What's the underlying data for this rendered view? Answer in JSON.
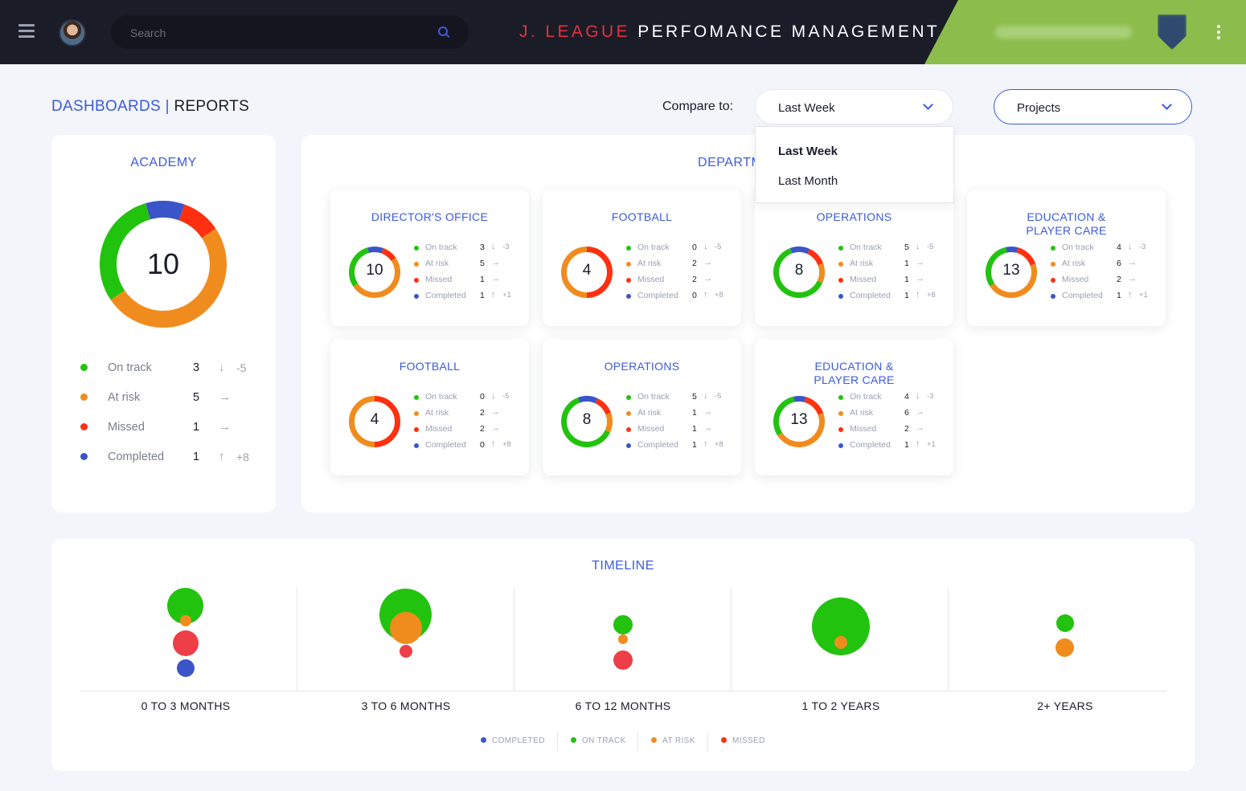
{
  "header": {
    "search_placeholder": "Search",
    "title_accent": "J. LEAGUE",
    "title_rest": "PERFOMANCE MANAGEMENT"
  },
  "breadcrumb": {
    "part1": "DASHBOARDS |",
    "part2": "REPORTS"
  },
  "compare": {
    "label": "Compare to:",
    "selected": "Last Week",
    "options": [
      "Last Week",
      "Last Month"
    ]
  },
  "filter": {
    "selected": "Projects"
  },
  "colors": {
    "on_track": "#22c30e",
    "at_risk": "#f08c1e",
    "missed": "#ff3010",
    "completed": "#3b55c9",
    "accent": "#3b5bdb"
  },
  "academy": {
    "title": "ACADEMY",
    "total": "10",
    "rows": [
      {
        "label": "On track",
        "value": "3",
        "arrow": "↓",
        "delta": "-5"
      },
      {
        "label": "At risk",
        "value": "5",
        "arrow": "→",
        "delta": ""
      },
      {
        "label": "Missed",
        "value": "1",
        "arrow": "→",
        "delta": ""
      },
      {
        "label": "Completed",
        "value": "1",
        "arrow": "↑",
        "delta": "+8"
      }
    ]
  },
  "departments": {
    "title": "DEPARTMENTS",
    "cards": [
      {
        "title": "DIRECTOR'S OFFICE",
        "total": "10",
        "rows": [
          {
            "label": "On track",
            "value": "3",
            "arrow": "↓",
            "delta": "-3"
          },
          {
            "label": "At risk",
            "value": "5",
            "arrow": "→",
            "delta": ""
          },
          {
            "label": "Missed",
            "value": "1",
            "arrow": "→",
            "delta": ""
          },
          {
            "label": "Completed",
            "value": "1",
            "arrow": "↑",
            "delta": "+1"
          }
        ]
      },
      {
        "title": "FOOTBALL",
        "total": "4",
        "rows": [
          {
            "label": "On track",
            "value": "0",
            "arrow": "↓",
            "delta": "-5"
          },
          {
            "label": "At risk",
            "value": "2",
            "arrow": "→",
            "delta": ""
          },
          {
            "label": "Missed",
            "value": "2",
            "arrow": "→",
            "delta": ""
          },
          {
            "label": "Completed",
            "value": "0",
            "arrow": "↑",
            "delta": "+8"
          }
        ]
      },
      {
        "title": "OPERATIONS",
        "total": "8",
        "rows": [
          {
            "label": "On track",
            "value": "5",
            "arrow": "↓",
            "delta": "-5"
          },
          {
            "label": "At risk",
            "value": "1",
            "arrow": "→",
            "delta": ""
          },
          {
            "label": "Missed",
            "value": "1",
            "arrow": "→",
            "delta": ""
          },
          {
            "label": "Completed",
            "value": "1",
            "arrow": "↑",
            "delta": "+8"
          }
        ]
      },
      {
        "title": "EDUCATION & PLAYER CARE",
        "total": "13",
        "rows": [
          {
            "label": "On track",
            "value": "4",
            "arrow": "↓",
            "delta": "-3"
          },
          {
            "label": "At risk",
            "value": "6",
            "arrow": "→",
            "delta": ""
          },
          {
            "label": "Missed",
            "value": "2",
            "arrow": "→",
            "delta": ""
          },
          {
            "label": "Completed",
            "value": "1",
            "arrow": "↑",
            "delta": "+1"
          }
        ]
      },
      {
        "title": "FOOTBALL",
        "total": "4",
        "rows": [
          {
            "label": "On track",
            "value": "0",
            "arrow": "↓",
            "delta": "-5"
          },
          {
            "label": "At risk",
            "value": "2",
            "arrow": "→",
            "delta": ""
          },
          {
            "label": "Missed",
            "value": "2",
            "arrow": "→",
            "delta": ""
          },
          {
            "label": "Completed",
            "value": "0",
            "arrow": "↑",
            "delta": "+8"
          }
        ]
      },
      {
        "title": "OPERATIONS",
        "total": "8",
        "rows": [
          {
            "label": "On track",
            "value": "5",
            "arrow": "↓",
            "delta": "-5"
          },
          {
            "label": "At risk",
            "value": "1",
            "arrow": "→",
            "delta": ""
          },
          {
            "label": "Missed",
            "value": "1",
            "arrow": "→",
            "delta": ""
          },
          {
            "label": "Completed",
            "value": "1",
            "arrow": "↑",
            "delta": "+8"
          }
        ]
      },
      {
        "title": "EDUCATION & PLAYER CARE",
        "total": "13",
        "rows": [
          {
            "label": "On track",
            "value": "4",
            "arrow": "↓",
            "delta": "-3"
          },
          {
            "label": "At risk",
            "value": "6",
            "arrow": "→",
            "delta": ""
          },
          {
            "label": "Missed",
            "value": "2",
            "arrow": "→",
            "delta": ""
          },
          {
            "label": "Completed",
            "value": "1",
            "arrow": "↑",
            "delta": "+1"
          }
        ]
      }
    ]
  },
  "timeline": {
    "title": "TIMELINE",
    "buckets": [
      "0 TO 3 MONTHS",
      "3 TO 6 MONTHS",
      "6 TO 12 MONTHS",
      "1 TO 2 YEARS",
      "2+ YEARS"
    ],
    "legend": [
      "COMPLETED",
      "ON TRACK",
      "AT RISK",
      "MISSED"
    ]
  }
}
